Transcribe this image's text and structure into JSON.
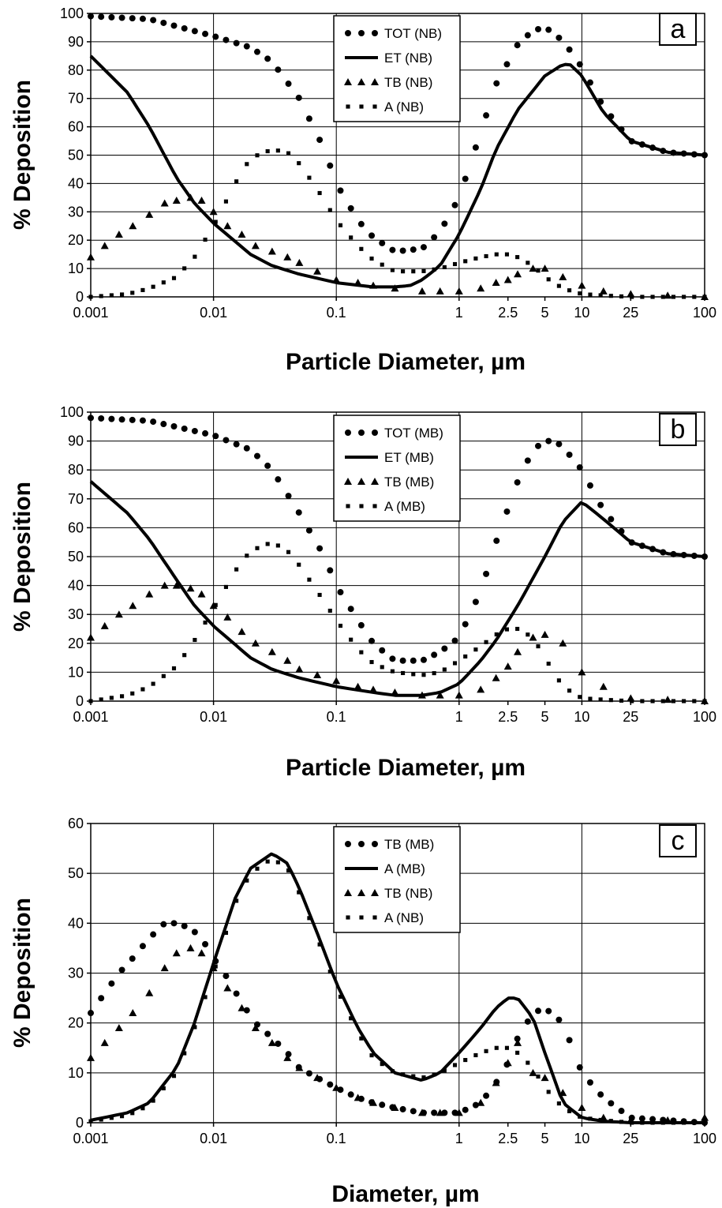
{
  "figure": {
    "panels": [
      {
        "tag": "a",
        "ylabel": "% Deposition",
        "xlabel": "Particle Diameter, µm",
        "legend": [
          "TOT (NB)",
          "ET (NB)",
          "TB (NB)",
          "A (NB)"
        ]
      },
      {
        "tag": "b",
        "ylabel": "% Deposition",
        "xlabel": "Particle Diameter, µm",
        "legend": [
          "TOT (MB)",
          "ET (MB)",
          "TB (MB)",
          "A (MB)"
        ]
      },
      {
        "tag": "c",
        "ylabel": "% Deposition",
        "xlabel": "Diameter, µm",
        "legend": [
          "TB (MB)",
          "A (MB)",
          "TB (NB)",
          "A (NB)"
        ]
      }
    ]
  },
  "chart_data": [
    {
      "type": "line",
      "panel": "a",
      "xlabel": "Particle Diameter, µm",
      "ylabel": "% Deposition",
      "xscale": "log",
      "xlim": [
        0.001,
        100
      ],
      "ylim": [
        0,
        100
      ],
      "x_ticks": [
        0.001,
        0.01,
        0.1,
        1,
        2.5,
        5,
        10,
        25,
        100
      ],
      "x_tick_labels": [
        "0.001",
        "0.01",
        "0.1",
        "1",
        "2.5",
        "5",
        "10",
        "25",
        "100"
      ],
      "y_ticks": [
        0,
        10,
        20,
        30,
        40,
        50,
        60,
        70,
        80,
        90,
        100
      ],
      "y_tick_labels": [
        "0",
        "10",
        "20",
        "30",
        "40",
        "50",
        "60",
        "70",
        "80",
        "90",
        "100"
      ],
      "grid": true,
      "legend_position": "top-center",
      "series": [
        {
          "name": "TOT (NB)",
          "marker": "circle",
          "x": [
            0.001,
            0.003,
            0.01,
            0.02,
            0.03,
            0.05,
            0.08,
            0.1,
            0.15,
            0.2,
            0.3,
            0.5,
            0.7,
            1,
            1.5,
            2,
            3,
            4,
            5,
            6,
            7,
            8,
            10,
            15,
            25,
            50,
            100
          ],
          "y": [
            99,
            98,
            92,
            88,
            83,
            70,
            52,
            40,
            27,
            21,
            16,
            17,
            23,
            35,
            58,
            75,
            89,
            94,
            95,
            93,
            90,
            87,
            81,
            67,
            55,
            51,
            50
          ]
        },
        {
          "name": "ET (NB)",
          "marker": "line",
          "x": [
            0.001,
            0.002,
            0.003,
            0.005,
            0.007,
            0.01,
            0.02,
            0.03,
            0.05,
            0.1,
            0.2,
            0.3,
            0.4,
            0.5,
            0.7,
            1,
            1.5,
            2,
            3,
            5,
            7,
            8,
            10,
            15,
            25,
            50,
            100
          ],
          "y": [
            85,
            72,
            60,
            42,
            33,
            26,
            15,
            11,
            8,
            5,
            3.5,
            3.5,
            4,
            6,
            11,
            22,
            38,
            52,
            66,
            78,
            82,
            82,
            78,
            65,
            55,
            51,
            50
          ]
        },
        {
          "name": "TB (NB)",
          "marker": "triangle",
          "x": [
            0.001,
            0.0013,
            0.0017,
            0.0022,
            0.003,
            0.004,
            0.005,
            0.0065,
            0.008,
            0.01,
            0.013,
            0.017,
            0.022,
            0.03,
            0.04,
            0.05,
            0.07,
            0.1,
            0.15,
            0.2,
            0.3,
            0.5,
            0.7,
            1,
            1.5,
            2,
            2.5,
            3,
            4,
            5,
            7,
            10,
            15,
            25,
            50,
            100
          ],
          "y": [
            14,
            18,
            22,
            25,
            29,
            33,
            34,
            35,
            34,
            30,
            25,
            22,
            18,
            16,
            14,
            12,
            9,
            6,
            5,
            4,
            3,
            2,
            2,
            2,
            3,
            5,
            6,
            8,
            10,
            10,
            7,
            4,
            2,
            1,
            0.5,
            0
          ]
        },
        {
          "name": "A (NB)",
          "marker": "square",
          "x": [
            0.001,
            0.002,
            0.003,
            0.005,
            0.007,
            0.01,
            0.015,
            0.02,
            0.03,
            0.04,
            0.05,
            0.07,
            0.1,
            0.15,
            0.2,
            0.3,
            0.5,
            0.7,
            1,
            1.5,
            2,
            2.5,
            3,
            4,
            5,
            7,
            10,
            15,
            25,
            50,
            100
          ],
          "y": [
            0,
            1,
            3,
            7,
            14,
            25,
            40,
            49,
            52,
            51,
            47,
            38,
            27,
            18,
            13,
            9,
            9,
            10,
            12,
            14,
            15,
            15,
            14,
            11,
            7,
            3,
            1,
            0.5,
            0,
            0,
            0
          ]
        }
      ]
    },
    {
      "type": "line",
      "panel": "b",
      "xlabel": "Particle Diameter, µm",
      "ylabel": "% Deposition",
      "xscale": "log",
      "xlim": [
        0.001,
        100
      ],
      "ylim": [
        0,
        100
      ],
      "x_ticks": [
        0.001,
        0.01,
        0.1,
        1,
        2.5,
        5,
        10,
        25,
        100
      ],
      "x_tick_labels": [
        "0.001",
        "0.01",
        "0.1",
        "1",
        "2.5",
        "5",
        "10",
        "25",
        "100"
      ],
      "y_ticks": [
        0,
        10,
        20,
        30,
        40,
        50,
        60,
        70,
        80,
        90,
        100
      ],
      "y_tick_labels": [
        "0",
        "10",
        "20",
        "30",
        "40",
        "50",
        "60",
        "70",
        "80",
        "90",
        "100"
      ],
      "grid": true,
      "legend_position": "top-center",
      "series": [
        {
          "name": "TOT (MB)",
          "marker": "circle",
          "x": [
            0.001,
            0.003,
            0.01,
            0.02,
            0.03,
            0.05,
            0.08,
            0.1,
            0.15,
            0.2,
            0.3,
            0.5,
            0.7,
            1,
            1.5,
            2,
            3,
            4,
            5,
            6,
            7,
            10,
            15,
            25,
            50,
            100
          ],
          "y": [
            98,
            97,
            92,
            87,
            80,
            65,
            50,
            40,
            28,
            20,
            14,
            14,
            17,
            22,
            38,
            55,
            76,
            87,
            90,
            90,
            88,
            80,
            66,
            55,
            51,
            50
          ]
        },
        {
          "name": "ET (MB)",
          "marker": "line",
          "x": [
            0.001,
            0.002,
            0.003,
            0.005,
            0.007,
            0.01,
            0.02,
            0.03,
            0.05,
            0.1,
            0.2,
            0.3,
            0.5,
            0.7,
            1,
            1.5,
            2,
            3,
            5,
            7,
            10,
            15,
            25,
            50,
            100
          ],
          "y": [
            76,
            65,
            56,
            42,
            33,
            26,
            15,
            11,
            8,
            5,
            3,
            2,
            2,
            3,
            6,
            14,
            21,
            33,
            50,
            62,
            69,
            63,
            55,
            51,
            50
          ]
        },
        {
          "name": "TB (MB)",
          "marker": "triangle",
          "x": [
            0.001,
            0.0013,
            0.0017,
            0.0022,
            0.003,
            0.004,
            0.005,
            0.0065,
            0.008,
            0.01,
            0.013,
            0.017,
            0.022,
            0.03,
            0.04,
            0.05,
            0.07,
            0.1,
            0.15,
            0.2,
            0.3,
            0.5,
            0.7,
            1,
            1.5,
            2,
            2.5,
            3,
            4,
            5,
            7,
            10,
            15,
            25,
            50,
            100
          ],
          "y": [
            22,
            26,
            30,
            33,
            37,
            40,
            40,
            39,
            37,
            33,
            29,
            24,
            20,
            17,
            14,
            11,
            9,
            7,
            5,
            4,
            3,
            2,
            2,
            2,
            4,
            8,
            12,
            17,
            22,
            23,
            20,
            10,
            5,
            1,
            0.5,
            0
          ]
        },
        {
          "name": "A (MB)",
          "marker": "square",
          "x": [
            0.001,
            0.002,
            0.003,
            0.005,
            0.007,
            0.01,
            0.015,
            0.02,
            0.03,
            0.04,
            0.05,
            0.07,
            0.1,
            0.15,
            0.2,
            0.3,
            0.5,
            0.7,
            1,
            1.5,
            2,
            2.5,
            3,
            4,
            5,
            7,
            10,
            15,
            25,
            50,
            100
          ],
          "y": [
            0,
            2,
            5,
            12,
            21,
            32,
            45,
            52,
            55,
            52,
            47,
            38,
            28,
            18,
            13,
            10,
            9,
            10,
            14,
            19,
            23,
            25,
            25,
            22,
            15,
            5,
            1,
            0.5,
            0,
            0,
            0
          ]
        }
      ]
    },
    {
      "type": "line",
      "panel": "c",
      "xlabel": "Diameter, µm",
      "ylabel": "% Deposition",
      "xscale": "log",
      "xlim": [
        0.001,
        100
      ],
      "ylim": [
        0,
        60
      ],
      "x_ticks": [
        0.001,
        0.01,
        0.1,
        1,
        2.5,
        5,
        10,
        25,
        100
      ],
      "x_tick_labels": [
        "0.001",
        "0.01",
        "0.1",
        "1",
        "2.5",
        "5",
        "10",
        "25",
        "100"
      ],
      "y_ticks": [
        0,
        10,
        20,
        30,
        40,
        50,
        60
      ],
      "y_tick_labels": [
        "0",
        "10",
        "20",
        "30",
        "40",
        "50",
        "60"
      ],
      "grid": true,
      "legend_position": "top-center",
      "series": [
        {
          "name": "TB (MB)",
          "marker": "circle",
          "x": [
            0.001,
            0.0013,
            0.0017,
            0.0022,
            0.003,
            0.004,
            0.005,
            0.0065,
            0.008,
            0.01,
            0.013,
            0.017,
            0.022,
            0.03,
            0.04,
            0.05,
            0.07,
            0.1,
            0.15,
            0.2,
            0.3,
            0.5,
            0.7,
            1,
            1.5,
            2,
            2.5,
            3,
            4,
            5,
            7,
            10,
            15,
            25,
            50,
            100
          ],
          "y": [
            22,
            26,
            30,
            33,
            37,
            40,
            40,
            39,
            37,
            33,
            29,
            24,
            20,
            17,
            14,
            11,
            9,
            7,
            5,
            4,
            3,
            2,
            2,
            2,
            4,
            8,
            12,
            17,
            22,
            23,
            20,
            10,
            5,
            1,
            0.5,
            0
          ]
        },
        {
          "name": "A (MB)",
          "marker": "line",
          "x": [
            0.001,
            0.002,
            0.003,
            0.005,
            0.007,
            0.01,
            0.015,
            0.02,
            0.03,
            0.04,
            0.05,
            0.07,
            0.1,
            0.15,
            0.2,
            0.3,
            0.5,
            0.7,
            1,
            1.5,
            2,
            2.5,
            3,
            4,
            5,
            7,
            10,
            15,
            25,
            50,
            100
          ],
          "y": [
            0.5,
            2,
            4,
            11,
            20,
            32,
            45,
            51,
            54,
            52,
            47,
            38,
            28,
            19,
            14,
            10,
            8.5,
            10,
            14,
            19,
            23,
            25,
            25,
            21,
            14,
            4,
            1,
            0.3,
            0,
            0,
            0
          ]
        },
        {
          "name": "TB (NB)",
          "marker": "triangle",
          "x": [
            0.001,
            0.0013,
            0.0017,
            0.0022,
            0.003,
            0.004,
            0.005,
            0.0065,
            0.008,
            0.01,
            0.013,
            0.017,
            0.022,
            0.03,
            0.04,
            0.05,
            0.07,
            0.1,
            0.15,
            0.2,
            0.3,
            0.5,
            0.7,
            1,
            1.5,
            2,
            2.5,
            3,
            4,
            5,
            7,
            10,
            15,
            25,
            50,
            100
          ],
          "y": [
            13,
            16,
            19,
            22,
            26,
            31,
            34,
            35,
            34,
            31,
            27,
            23,
            19,
            16,
            13,
            11,
            9,
            7,
            5,
            4,
            3,
            2,
            2,
            2,
            4,
            8,
            12,
            16,
            10,
            9,
            6,
            3,
            1,
            0.5,
            0.5,
            1
          ]
        },
        {
          "name": "A (NB)",
          "marker": "square",
          "x": [
            0.001,
            0.002,
            0.003,
            0.005,
            0.007,
            0.01,
            0.015,
            0.02,
            0.03,
            0.04,
            0.05,
            0.07,
            0.1,
            0.15,
            0.2,
            0.3,
            0.5,
            0.7,
            1,
            1.5,
            2,
            2.5,
            3,
            4,
            5,
            7,
            10,
            15,
            25,
            50,
            100
          ],
          "y": [
            0.3,
            1.5,
            3.5,
            10,
            19,
            30,
            44,
            50,
            53,
            51,
            46,
            37,
            27,
            18,
            13,
            10,
            9,
            10,
            12,
            14,
            15,
            15,
            14,
            11,
            7,
            3,
            1,
            0.5,
            0,
            0,
            0
          ]
        }
      ]
    }
  ]
}
